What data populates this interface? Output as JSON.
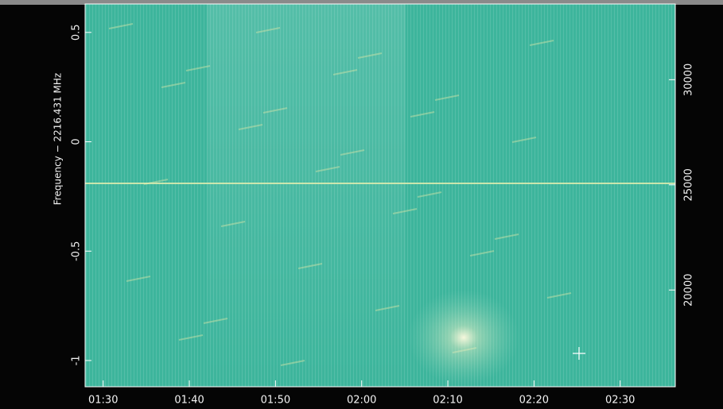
{
  "chart_data": {
    "type": "spectrogram",
    "ylabel": "Frequency − 2216.431 MHz",
    "xlim": [
      87.9,
      156.4
    ],
    "xticks": [
      {
        "value": 90,
        "label": "01:30"
      },
      {
        "value": 100,
        "label": "01:40"
      },
      {
        "value": 110,
        "label": "01:50"
      },
      {
        "value": 120,
        "label": "02:00"
      },
      {
        "value": 130,
        "label": "02:10"
      },
      {
        "value": 140,
        "label": "02:20"
      },
      {
        "value": 150,
        "label": "02:30"
      }
    ],
    "ylim": [
      -1.12,
      0.63
    ],
    "yticks": [
      0.5,
      0,
      -0.5,
      -1
    ],
    "y2lim": [
      15400,
      33600
    ],
    "y2ticks": [
      30000,
      25000,
      20000
    ],
    "hlines": [
      -0.19
    ],
    "hline_color": "#e8f0b0",
    "background_color": "#3db59c"
  }
}
